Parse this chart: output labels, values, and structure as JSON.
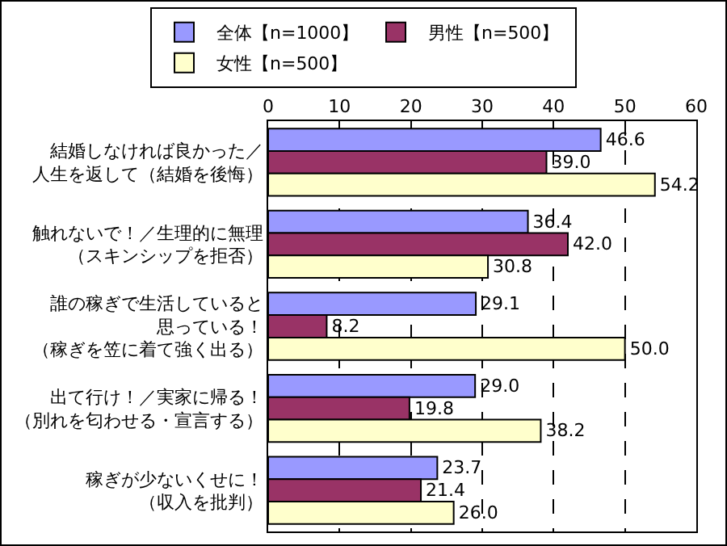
{
  "chart_data": {
    "type": "bar",
    "orientation": "horizontal",
    "categories": [
      "結婚しなければ良かった／人生を返して（結婚を後悔）",
      "触れないで！／生理的に無理（スキンシップを拒否）",
      "誰の稼ぎで生活していると思っている！（稼ぎを笠に着て強く出る）",
      "出て行け！／実家に帰る！（別れを匂わせる・宣言する）",
      "稼ぎが少ないくせに！（収入を批判）"
    ],
    "series": [
      {
        "name": "全体【n=1000】",
        "color": "#9999ff",
        "values": [
          46.6,
          36.4,
          29.1,
          29.0,
          23.7
        ],
        "value_labels": [
          "46.6",
          "36.4",
          "29.1",
          "29.0",
          "23.7"
        ]
      },
      {
        "name": "男性【n=500】",
        "color": "#993366",
        "values": [
          39.0,
          42.0,
          8.2,
          19.8,
          21.4
        ],
        "value_labels": [
          "39.0",
          "42.0",
          "8.2",
          "19.8",
          "21.4"
        ]
      },
      {
        "name": "女性【n=500】",
        "color": "#ffffcc",
        "values": [
          54.2,
          30.8,
          50.0,
          38.2,
          26.0
        ],
        "value_labels": [
          "54.2",
          "30.8",
          "50.0",
          "38.2",
          "26.0"
        ]
      }
    ],
    "xlim": [
      0,
      60
    ],
    "xticks": [
      0,
      10,
      20,
      30,
      40,
      50,
      60
    ],
    "grid": "x",
    "legend": "top"
  }
}
